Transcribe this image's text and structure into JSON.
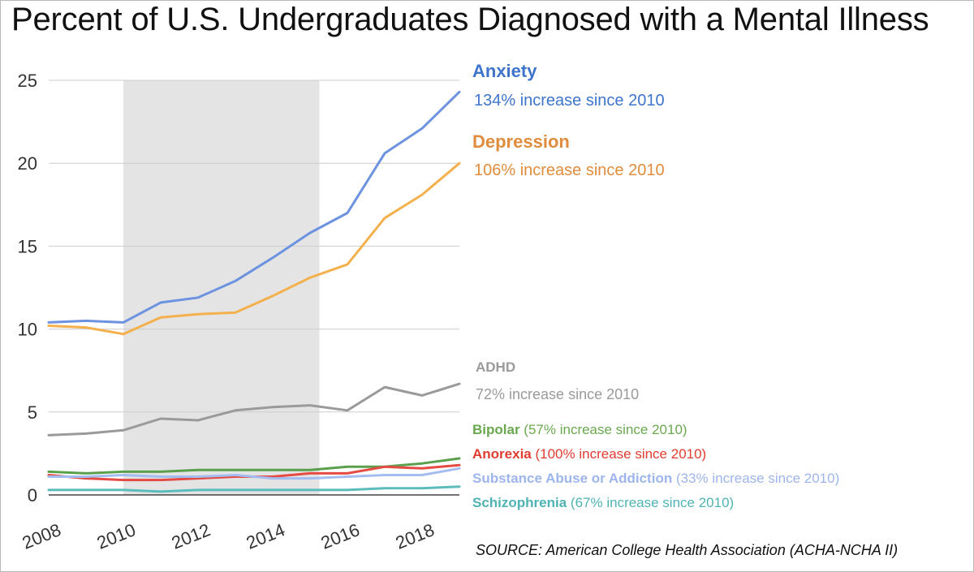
{
  "title": "Percent of U.S. Undergraduates Diagnosed with a Mental Illness",
  "source": "SOURCE: American College Health Association (ACHA-NCHA II)",
  "chart_data": {
    "type": "line",
    "title": "Percent of U.S. Undergraduates Diagnosed with a Mental Illness",
    "xlabel": "",
    "ylabel": "",
    "xlim": [
      2008,
      2019
    ],
    "ylim": [
      0,
      25
    ],
    "xticks": [
      "2008",
      "2010",
      "2012",
      "2014",
      "2016",
      "2018"
    ],
    "yticks": [
      "0",
      "5",
      "10",
      "15",
      "20",
      "25"
    ],
    "grid": "horizontal",
    "shaded_period": [
      2010,
      2015.25
    ],
    "x": [
      2008,
      2009,
      2010,
      2011,
      2012,
      2013,
      2014,
      2015,
      2016,
      2017,
      2018,
      2019
    ],
    "series": [
      {
        "key": "anxiety",
        "name": "Anxiety",
        "color": "#6d93e0",
        "label_color": "#3f74cc",
        "note": "134% increase since 2010",
        "values": [
          10.4,
          10.5,
          10.4,
          11.6,
          11.9,
          12.9,
          14.3,
          15.8,
          17.0,
          20.6,
          22.1,
          24.3
        ]
      },
      {
        "key": "depression",
        "name": "Depression",
        "color": "#f3b04c",
        "label_color": "#e08c3c",
        "note": "106% increase since 2010",
        "values": [
          10.2,
          10.1,
          9.7,
          10.7,
          10.9,
          11.0,
          12.0,
          13.1,
          13.9,
          16.7,
          18.1,
          20.0
        ]
      },
      {
        "key": "adhd",
        "name": "ADHD",
        "color": "#9a9a9a",
        "label_color": "#9a9a9a",
        "note": "72% increase since 2010",
        "values": [
          3.6,
          3.7,
          3.9,
          4.6,
          4.5,
          5.1,
          5.3,
          5.4,
          5.1,
          6.5,
          6.0,
          6.7
        ]
      },
      {
        "key": "bipolar",
        "name": "Bipolar",
        "color": "#5aa04c",
        "label_color": "#6aa84f",
        "note": "(57% increase since 2010)",
        "values": [
          1.4,
          1.3,
          1.4,
          1.4,
          1.5,
          1.5,
          1.5,
          1.5,
          1.7,
          1.7,
          1.9,
          2.2
        ]
      },
      {
        "key": "anorexia",
        "name": "Anorexia",
        "color": "#e54b42",
        "label_color": "#e03c31",
        "note": "(100% increase since 2010)",
        "values": [
          1.2,
          1.0,
          0.9,
          0.9,
          1.0,
          1.1,
          1.1,
          1.3,
          1.3,
          1.7,
          1.6,
          1.8
        ]
      },
      {
        "key": "substance",
        "name": "Substance Abuse or Addiction",
        "color": "#a4bdf0",
        "label_color": "#9db5ec",
        "note": "(33% increase since 2010)",
        "values": [
          1.1,
          1.1,
          1.2,
          1.1,
          1.1,
          1.2,
          1.0,
          1.0,
          1.1,
          1.2,
          1.2,
          1.6
        ]
      },
      {
        "key": "schizophrenia",
        "name": "Schizophrenia",
        "color": "#5cbcbc",
        "label_color": "#4fb3b3",
        "note": "(67% increase since 2010)",
        "values": [
          0.3,
          0.3,
          0.3,
          0.2,
          0.3,
          0.3,
          0.3,
          0.3,
          0.3,
          0.4,
          0.4,
          0.5
        ]
      }
    ]
  }
}
